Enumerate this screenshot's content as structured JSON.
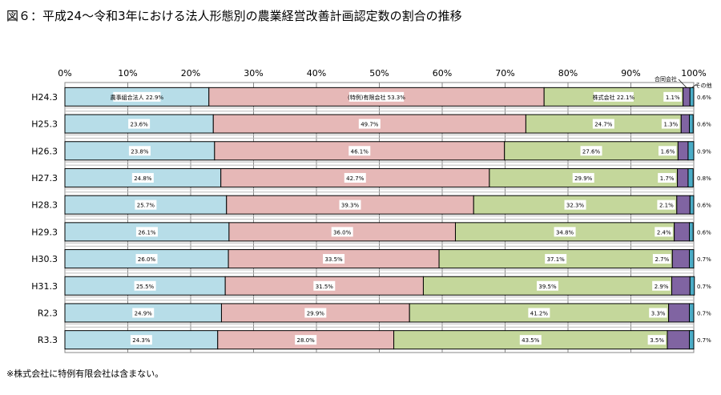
{
  "title": "図６：平成24～令和3年における法人形態別の農業経営改善計画認定数の割合の推移",
  "footnote": "※株式会社に特例有限会社は含まない。",
  "chart_data": {
    "type": "bar",
    "orientation": "horizontal",
    "stacked": "percent",
    "title": "",
    "xlim": [
      0,
      100
    ],
    "xticks": [
      "0%",
      "10%",
      "20%",
      "30%",
      "40%",
      "50%",
      "60%",
      "70%",
      "80%",
      "90%",
      "100%"
    ],
    "grid": true,
    "categories": [
      "H24.3",
      "H25.3",
      "H26.3",
      "H27.3",
      "H28.3",
      "H29.3",
      "H30.3",
      "H31.3",
      "R2.3",
      "R3.3"
    ],
    "series": [
      {
        "name": "農事組合法人",
        "color": "#b7dde8",
        "values": [
          22.9,
          23.6,
          23.8,
          24.8,
          25.7,
          26.1,
          26.0,
          25.5,
          24.9,
          24.3
        ]
      },
      {
        "name": "(特例)有限会社",
        "color": "#e6b8b7",
        "values": [
          53.3,
          49.7,
          46.1,
          42.7,
          39.3,
          36.0,
          33.5,
          31.5,
          29.9,
          28.0
        ]
      },
      {
        "name": "株式会社",
        "color": "#c4d79b",
        "values": [
          22.1,
          24.7,
          27.6,
          29.9,
          32.3,
          34.8,
          37.1,
          39.5,
          41.2,
          43.5
        ]
      },
      {
        "name": "合同会社",
        "color": "#8064a2",
        "values": [
          1.1,
          1.3,
          1.6,
          1.7,
          2.1,
          2.4,
          2.7,
          2.9,
          3.3,
          3.5
        ]
      },
      {
        "name": "その他",
        "color": "#4bacc6",
        "values": [
          0.6,
          0.6,
          0.9,
          0.8,
          0.6,
          0.6,
          0.7,
          0.7,
          0.7,
          0.7
        ]
      }
    ]
  }
}
